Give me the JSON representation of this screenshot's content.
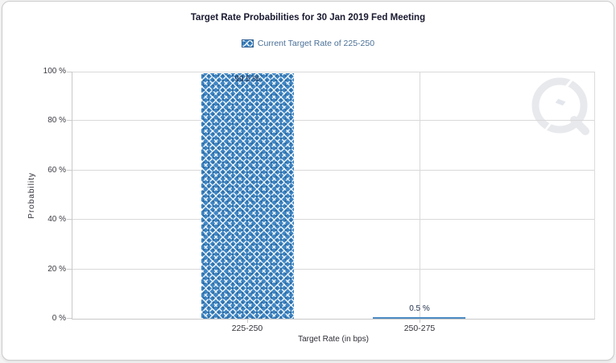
{
  "chart_data": {
    "type": "bar",
    "title": "Target Rate Probabilities for 30 Jan 2019 Fed Meeting",
    "legend_label": "Current Target Rate of 225-250",
    "legend_position": "top",
    "categories": [
      "225-250",
      "250-275"
    ],
    "values": [
      99.5,
      0.5
    ],
    "value_labels": [
      "99.5 %",
      "0.5 %"
    ],
    "xlabel": "Target Rate (in bps)",
    "ylabel": "Probability",
    "ylim": [
      0,
      100
    ],
    "ytick_labels": [
      "0 %",
      "20 %",
      "40 %",
      "60 %",
      "80 %",
      "100 %"
    ],
    "grid": true,
    "colors": {
      "bar_fill": "#3E86C6",
      "bar_pattern_line": "#FFFFFF",
      "bar_pattern_dot": "#2E6DA4",
      "thin_bar_fill": "#4D8CC4",
      "grid_line": "#D9D9D9",
      "axis_line": "#C9C9C9",
      "title_text": "#191930",
      "legend_text": "#4A7097",
      "tick_text": "#3B3B44",
      "value_text": "#24344F",
      "watermark": "#E3E5EC"
    }
  }
}
